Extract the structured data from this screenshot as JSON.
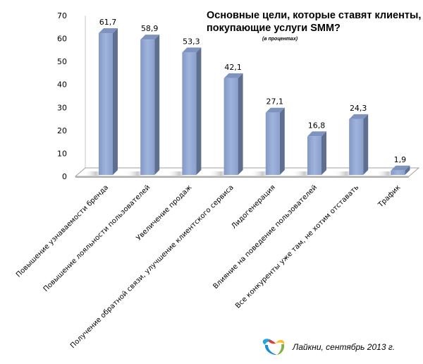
{
  "chart_data": {
    "type": "bar",
    "style": "3d-column",
    "title": "Основные цели, которые ставят клиенты, покупающие услуги SMM?",
    "title_lines": [
      "Основные цели, которые ставят клиенты,",
      "покупающие услуги SMM?"
    ],
    "subtitle": "(в процентах)",
    "xlabel": "",
    "ylabel": "",
    "ylim": [
      0,
      70
    ],
    "yticks": [
      0,
      10,
      20,
      30,
      40,
      50,
      60,
      70
    ],
    "grid": false,
    "legend": null,
    "categories": [
      "Повышение узнаваемости бренда",
      "Повышение лояльности пользователей",
      "Увеличение продаж",
      "Получение обратной связи, улучшение клиентского сервиса",
      "Лидогенерация",
      "Влияние на поведение пользователей",
      "Все конкуренты уже там, не хотим отставать",
      "Трафик"
    ],
    "values": [
      61.7,
      58.9,
      53.3,
      42.1,
      27.1,
      16.8,
      24.3,
      1.9
    ],
    "value_labels": [
      "61,7",
      "58,9",
      "53,3",
      "42,1",
      "27,1",
      "16,8",
      "24,3",
      "1,9"
    ],
    "colors": {
      "bar_front": "#93A9D4",
      "bar_side": "#5E6F8F",
      "bar_top": "#7F93BE",
      "axis": "#A0A0A0"
    }
  },
  "footer": {
    "logo_icon": "laikni-heart-logo-icon",
    "text": "Лайкни, сентябрь 2013 г."
  }
}
